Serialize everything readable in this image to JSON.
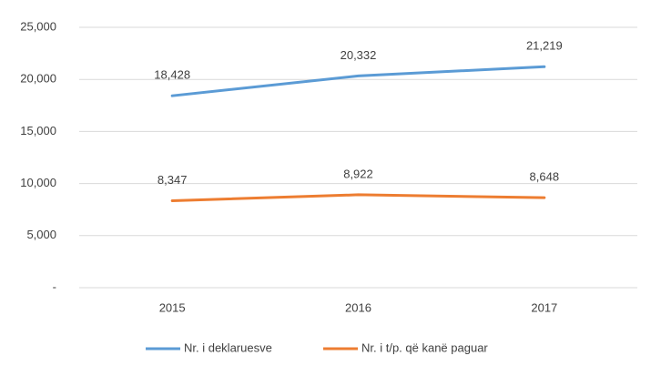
{
  "chart_data": {
    "type": "line",
    "categories": [
      "2015",
      "2016",
      "2017"
    ],
    "series": [
      {
        "name": "Nr. i deklaruesve",
        "color": "#5b9bd5",
        "values": [
          18428,
          20332,
          21219
        ],
        "value_labels": [
          "18,428",
          "20,332",
          "21,219"
        ]
      },
      {
        "name": "Nr. i t/p. që kanë paguar",
        "color": "#ed7d31",
        "values": [
          8347,
          8922,
          8648
        ],
        "value_labels": [
          "8,347",
          "8,922",
          "8,648"
        ]
      }
    ],
    "ylim": [
      0,
      25000
    ],
    "yticks": [
      {
        "value": 0,
        "label": "-"
      },
      {
        "value": 5000,
        "label": "5,000"
      },
      {
        "value": 10000,
        "label": "10,000"
      },
      {
        "value": 15000,
        "label": "15,000"
      },
      {
        "value": 20000,
        "label": "20,000"
      },
      {
        "value": 25000,
        "label": "25,000"
      }
    ],
    "grid": true,
    "legend": "bottom"
  }
}
